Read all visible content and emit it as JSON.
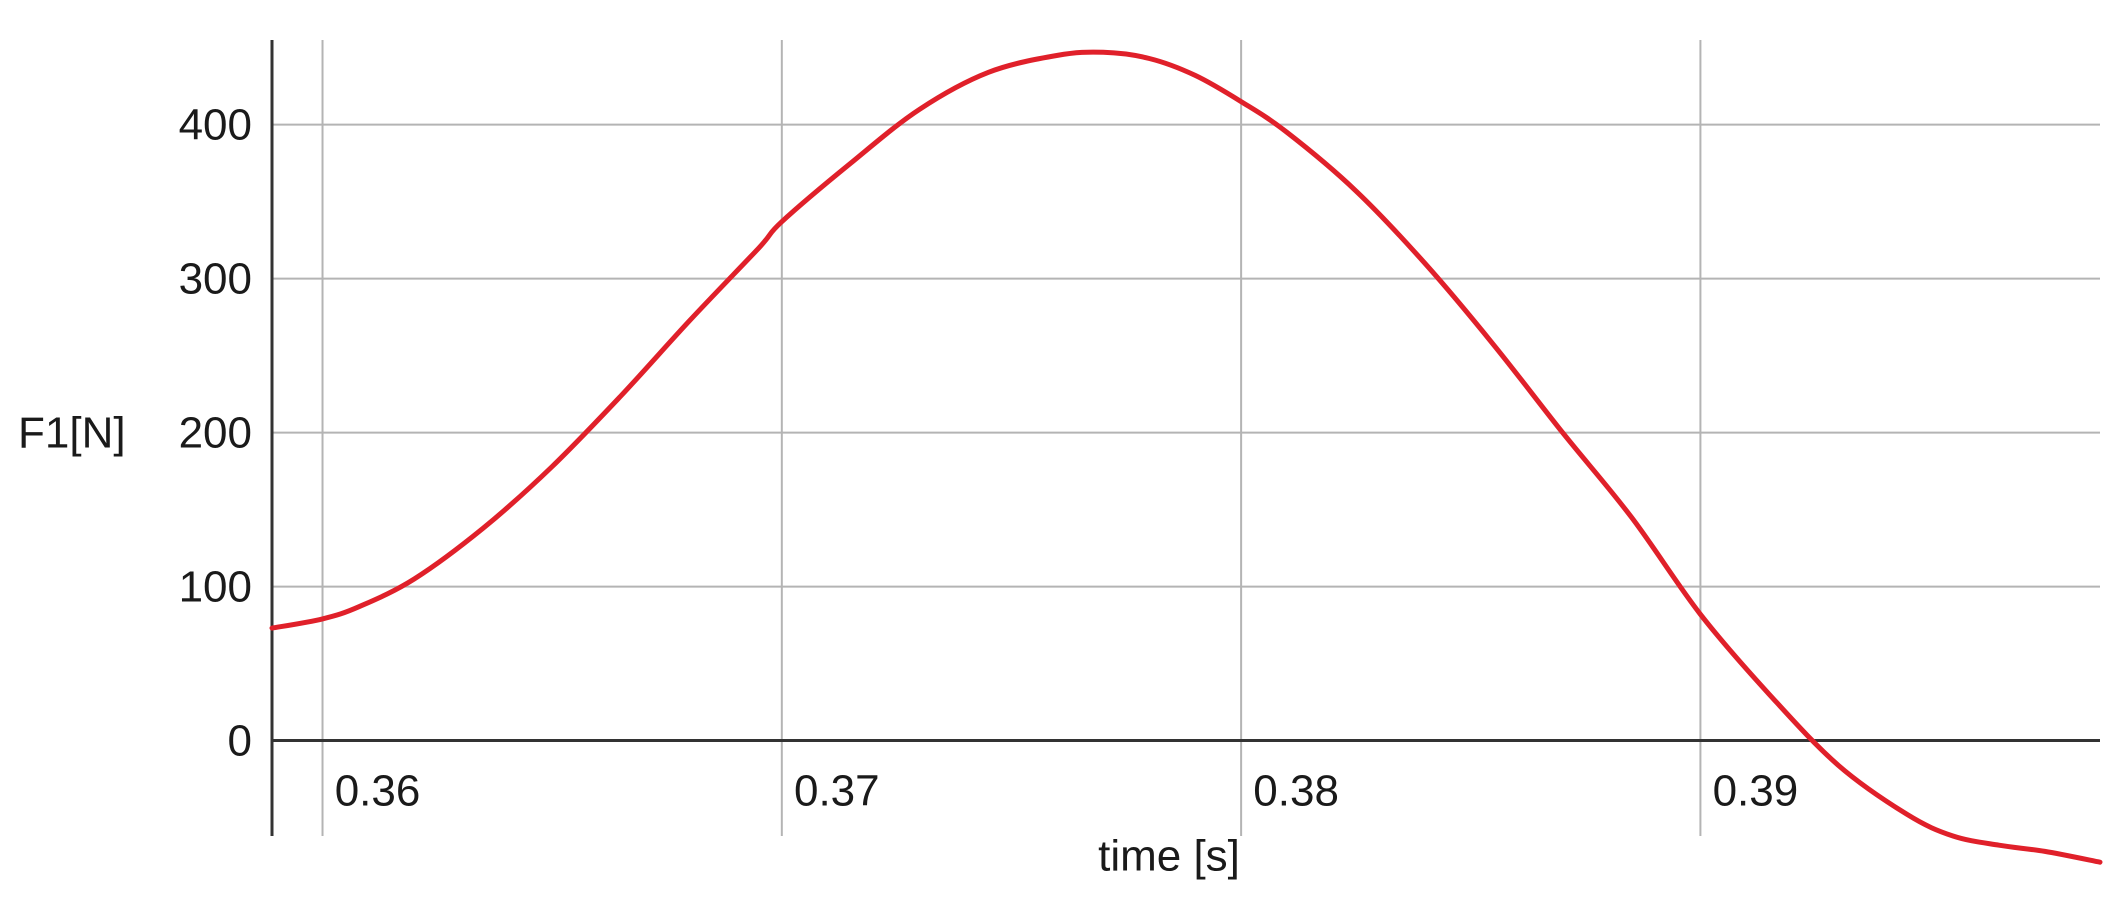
{
  "chart_data": {
    "type": "line",
    "xlabel": "time [s]",
    "ylabel": "F1[N]",
    "title": "",
    "xlim": [
      0.3589,
      0.3987
    ],
    "ylim": [
      -62,
      455
    ],
    "x_ticks": [
      0.36,
      0.37,
      0.38,
      0.39
    ],
    "x_tick_labels": [
      "0.36",
      "0.37",
      "0.38",
      "0.39"
    ],
    "y_ticks": [
      0,
      100,
      200,
      300,
      400
    ],
    "y_tick_labels": [
      "0",
      "100",
      "200",
      "300",
      "400"
    ],
    "grid": true,
    "colors": {
      "line": "#e0202a",
      "grid": "#b4b4b4",
      "axis": "#333333"
    },
    "series": [
      {
        "x": [
          0.3589,
          0.36,
          0.3608,
          0.362,
          0.3635,
          0.365,
          0.3665,
          0.368,
          0.3695,
          0.37,
          0.3715,
          0.373,
          0.3745,
          0.376,
          0.377,
          0.378,
          0.379,
          0.38,
          0.381,
          0.3825,
          0.384,
          0.3855,
          0.387,
          0.3885,
          0.39,
          0.3915,
          0.393,
          0.3945,
          0.3955,
          0.3965,
          0.3975,
          0.3987
        ],
        "y": [
          73,
          79,
          87,
          105,
          138,
          178,
          224,
          273,
          320,
          337,
          375,
          410,
          434,
          445,
          447,
          443,
          432,
          415,
          395,
          357,
          310,
          257,
          200,
          145,
          82,
          30,
          -16,
          -48,
          -62,
          -68,
          -72,
          -79
        ]
      }
    ]
  }
}
